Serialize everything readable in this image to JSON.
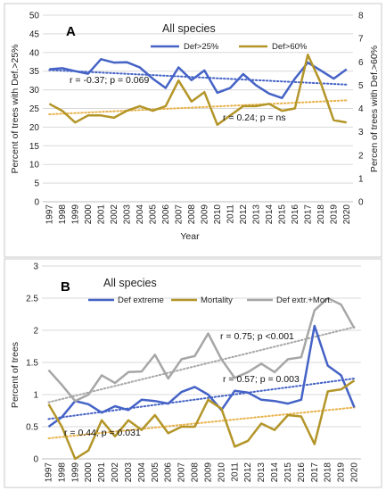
{
  "chart_data": [
    {
      "type": "line",
      "panel_label": "A",
      "title": "All species",
      "xlabel": "Year",
      "ylabel": "Percent of trees with Def.>25%",
      "y2label": "Percen of trees with Def.>60%",
      "categories": [
        "1997",
        "1998",
        "1999",
        "2000",
        "2001",
        "2002",
        "2003",
        "2004",
        "2005",
        "2006",
        "2007",
        "2008",
        "2009",
        "2010",
        "2011",
        "2012",
        "2013",
        "2014",
        "2015",
        "2016",
        "2017",
        "2018",
        "2019",
        "2020"
      ],
      "ylim": [
        0,
        50
      ],
      "yticks": [
        "0",
        "5",
        "10",
        "15",
        "20",
        "25",
        "30",
        "35",
        "40",
        "45",
        "50"
      ],
      "y2lim": [
        0,
        8
      ],
      "y2ticks": [
        "0",
        "1",
        "2",
        "3",
        "4",
        "5",
        "6",
        "7",
        "8"
      ],
      "grid": true,
      "legend_position": "top-right",
      "series": [
        {
          "name": "Def>25%",
          "axis": "left",
          "color": "#4563c6",
          "values": [
            35.5,
            35.8,
            35,
            34.3,
            38.2,
            37.3,
            37.4,
            36,
            33,
            30.5,
            36,
            32.6,
            35.2,
            29.2,
            30.5,
            34.2,
            31.2,
            29,
            27.8,
            33,
            37.3,
            35.2,
            33,
            35.5
          ]
        },
        {
          "name": "Def>60%",
          "axis": "right",
          "color": "#b39528",
          "values": [
            4.2,
            3.9,
            3.4,
            3.7,
            3.7,
            3.6,
            3.9,
            4.1,
            3.9,
            4.1,
            5.2,
            4.3,
            4.7,
            3.3,
            3.7,
            4.1,
            4.1,
            4.2,
            3.9,
            4.0,
            6.3,
            5.1,
            3.5,
            3.4
          ]
        }
      ],
      "trendlines": [
        {
          "series": "Def>25%",
          "axis": "left",
          "color": "#4563c6",
          "from": 35.3,
          "to": 31.4
        },
        {
          "series": "Def>60%",
          "axis": "right",
          "color": "#e8b24a",
          "from": 3.75,
          "to": 4.35
        }
      ],
      "annotations": [
        {
          "text": "r = -0.37; p = 0.069"
        },
        {
          "text": "r = 0.24; p = ns"
        }
      ]
    },
    {
      "type": "line",
      "panel_label": "B",
      "title": "All species",
      "xlabel": "",
      "ylabel": "Percent of trees",
      "categories": [
        "1997",
        "1998",
        "1999",
        "2000",
        "2001",
        "2002",
        "2003",
        "2004",
        "2005",
        "2006",
        "2007",
        "2008",
        "2009",
        "2010",
        "2011",
        "2012",
        "2013",
        "2014",
        "2015",
        "2016",
        "2017",
        "2018",
        "2019",
        "2020"
      ],
      "ylim": [
        0,
        3
      ],
      "yticks": [
        "0",
        "0.5",
        "1",
        "1.5",
        "2",
        "2.5",
        "3"
      ],
      "grid": true,
      "legend_position": "top",
      "series": [
        {
          "name": "Def extreme",
          "color": "#4563c6",
          "values": [
            0.5,
            0.65,
            0.9,
            0.85,
            0.72,
            0.82,
            0.76,
            0.92,
            0.9,
            0.86,
            1.04,
            1.12,
            1.0,
            0.76,
            1.06,
            1.03,
            0.92,
            0.9,
            0.86,
            0.92,
            2.07,
            1.45,
            1.3,
            0.8
          ]
        },
        {
          "name": "Mortality",
          "color": "#b39528",
          "values": [
            0.85,
            0.5,
            0.0,
            0.13,
            0.6,
            0.35,
            0.6,
            0.45,
            0.68,
            0.4,
            0.5,
            0.5,
            0.92,
            0.78,
            0.19,
            0.28,
            0.55,
            0.45,
            0.68,
            0.66,
            0.23,
            1.05,
            1.08,
            1.22
          ]
        },
        {
          "name": "Def extr.+Mort.",
          "color": "#a6a6a6",
          "values": [
            1.38,
            1.15,
            0.9,
            1.0,
            1.3,
            1.18,
            1.35,
            1.36,
            1.62,
            1.25,
            1.55,
            1.6,
            1.95,
            1.55,
            1.26,
            1.35,
            1.48,
            1.35,
            1.55,
            1.58,
            2.31,
            2.5,
            2.4,
            2.03
          ]
        }
      ],
      "trendlines": [
        {
          "series": "Def extreme",
          "color": "#4563c6",
          "from": 0.62,
          "to": 1.25
        },
        {
          "series": "Mortality",
          "color": "#e8b24a",
          "from": 0.32,
          "to": 0.8
        },
        {
          "series": "Def extr.+Mort.",
          "color": "#a6a6a6",
          "from": 0.88,
          "to": 2.05
        }
      ],
      "annotations": [
        {
          "text": "r = 0.75; p <0.001"
        },
        {
          "text": "r = 0.57; p = 0.003"
        },
        {
          "text": "r = 0.44; p = 0.031"
        }
      ]
    }
  ]
}
